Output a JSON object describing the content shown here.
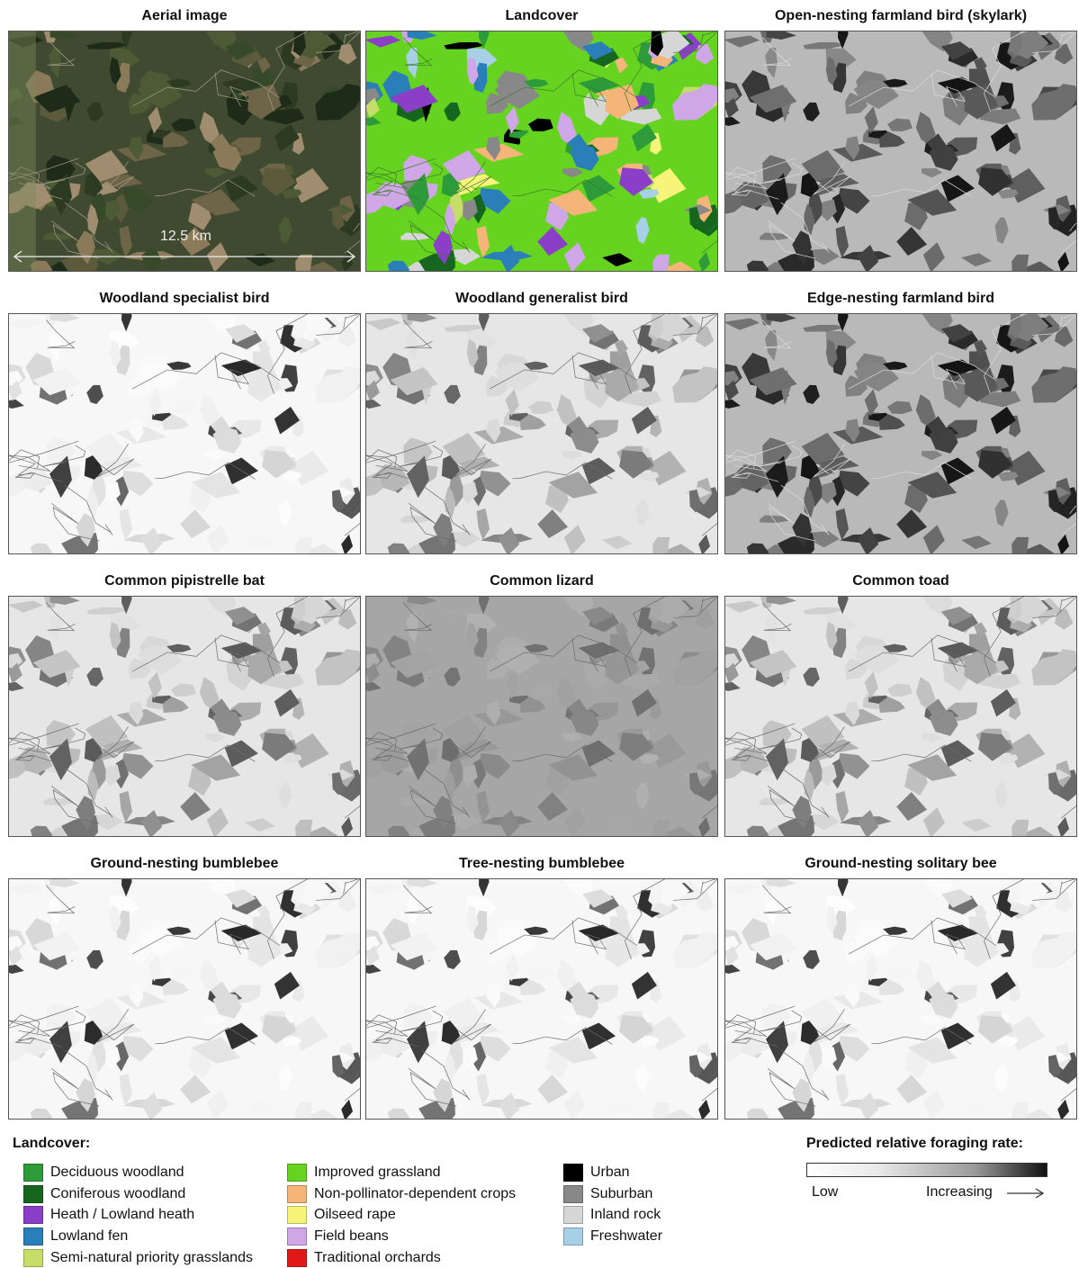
{
  "panels": [
    {
      "title": "Aerial image",
      "kind": "aerial",
      "scale_label": "12.5 km"
    },
    {
      "title": "Landcover",
      "kind": "landcover"
    },
    {
      "title": "Open-nesting farmland bird (skylark)",
      "kind": "gray",
      "tone": "dark"
    },
    {
      "title": "Woodland specialist bird",
      "kind": "gray",
      "tone": "verylight"
    },
    {
      "title": "Woodland generalist bird",
      "kind": "gray",
      "tone": "light"
    },
    {
      "title": "Edge-nesting farmland bird",
      "kind": "gray",
      "tone": "dark"
    },
    {
      "title": "Common pipistrelle bat",
      "kind": "gray",
      "tone": "light"
    },
    {
      "title": "Common lizard",
      "kind": "gray",
      "tone": "mid"
    },
    {
      "title": "Common toad",
      "kind": "gray",
      "tone": "light"
    },
    {
      "title": "Ground-nesting bumblebee",
      "kind": "gray",
      "tone": "verylight"
    },
    {
      "title": "Tree-nesting bumblebee",
      "kind": "gray",
      "tone": "verylight"
    },
    {
      "title": "Ground-nesting solitary bee",
      "kind": "gray",
      "tone": "verylight"
    }
  ],
  "legend": {
    "title": "Landcover:",
    "columns": [
      [
        {
          "label": "Deciduous woodland",
          "color": "#2e9b3a"
        },
        {
          "label": "Coniferous woodland",
          "color": "#17661f"
        },
        {
          "label": "Heath / Lowland heath",
          "color": "#8b3fc9"
        },
        {
          "label": "Lowland fen",
          "color": "#2a7fb8"
        },
        {
          "label": "Semi-natural priority grasslands",
          "color": "#c6dd6a"
        }
      ],
      [
        {
          "label": "Improved grassland",
          "color": "#66d320"
        },
        {
          "label": "Non-pollinator-dependent crops",
          "color": "#f5b578"
        },
        {
          "label": "Oilseed rape",
          "color": "#f6f57a"
        },
        {
          "label": "Field beans",
          "color": "#cfa6e6"
        },
        {
          "label": "Traditional orchards",
          "color": "#e01818"
        }
      ],
      [
        {
          "label": "Urban",
          "color": "#000000"
        },
        {
          "label": "Suburban",
          "color": "#888888"
        },
        {
          "label": "Inland rock",
          "color": "#d6d6d6"
        },
        {
          "label": "Freshwater",
          "color": "#a7cfe6"
        }
      ]
    ]
  },
  "gradient": {
    "title": "Predicted relative foraging rate:",
    "low_label": "Low",
    "high_label": "Increasing"
  }
}
